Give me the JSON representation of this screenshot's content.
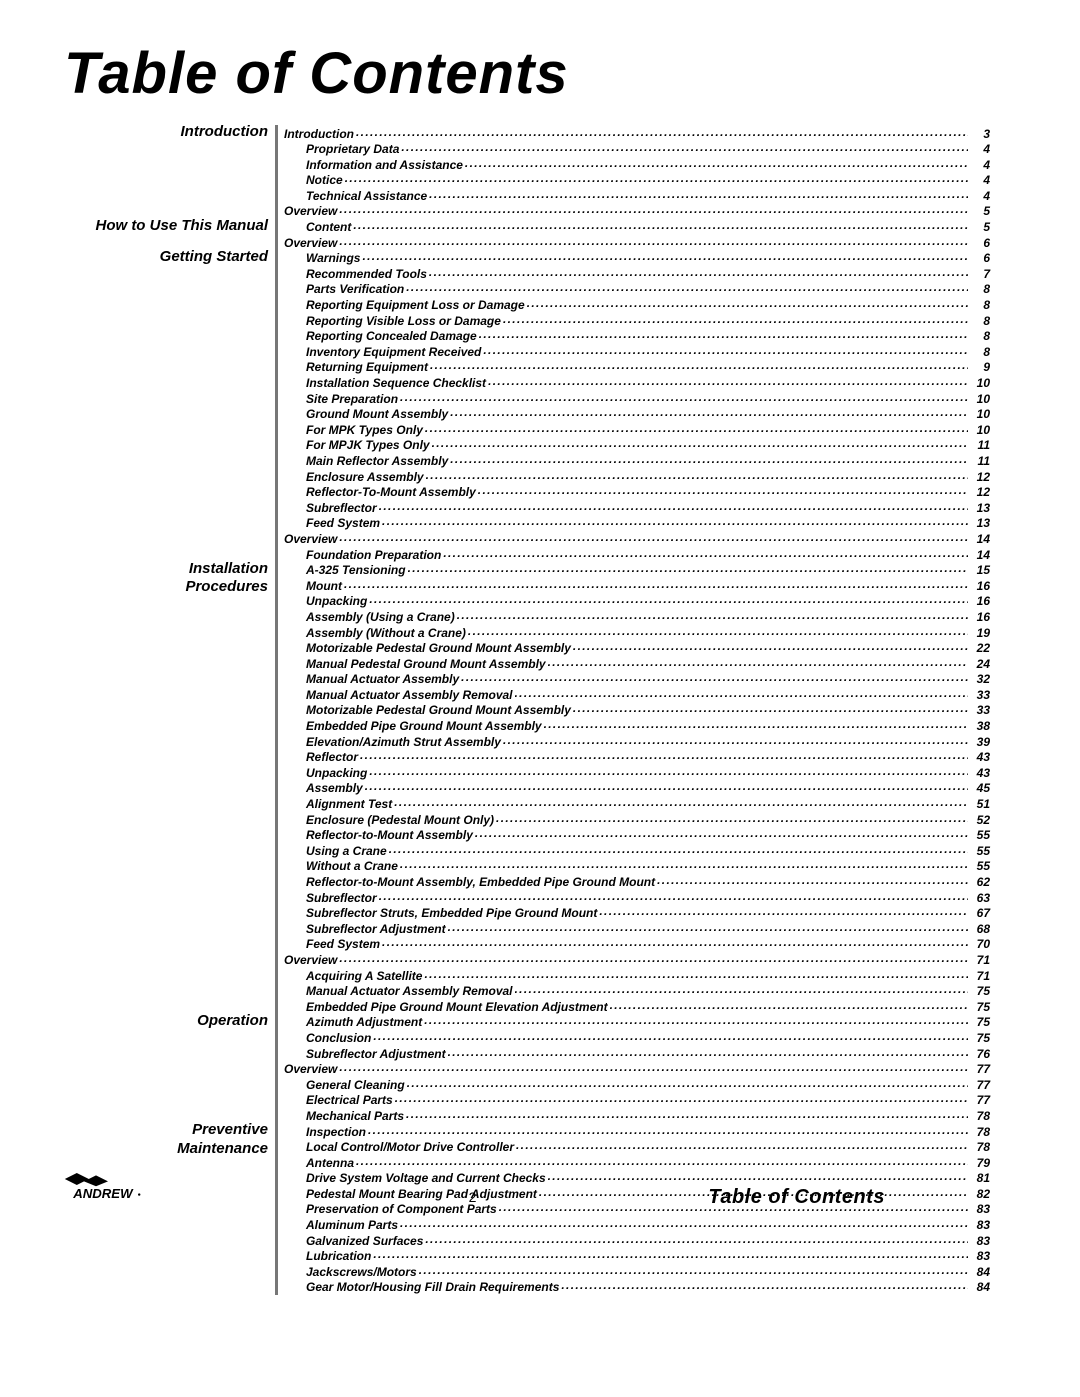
{
  "title": "Table of Contents",
  "page_number": "2",
  "footer_label": "Table of Contents",
  "logo_text": "ANDREW",
  "colors": {
    "text": "#000000",
    "rule": "#777777",
    "bg": "#ffffff"
  },
  "sections": [
    {
      "label": "Introduction",
      "start_index": 0
    },
    {
      "label": "How to Use This Manual",
      "start_index": 6
    },
    {
      "label": "Getting Started",
      "start_index": 8
    },
    {
      "label": "Installation Procedures",
      "start_index": 28
    },
    {
      "label": "Operation",
      "start_index": 57
    },
    {
      "label": "Preventive Maintenance",
      "start_index": 64
    }
  ],
  "entries": [
    {
      "level": 0,
      "label": "Introduction",
      "page": "3"
    },
    {
      "level": 1,
      "label": "Proprietary Data",
      "page": "4"
    },
    {
      "level": 1,
      "label": "Information and Assistance",
      "page": "4"
    },
    {
      "level": 1,
      "label": "Notice",
      "page": "4"
    },
    {
      "level": 1,
      "label": "Technical Assistance",
      "page": "4"
    },
    {
      "level": 0,
      "label": "Overview",
      "page": "5"
    },
    {
      "level": 1,
      "label": "Content",
      "page": "5"
    },
    {
      "level": 0,
      "label": "Overview",
      "page": "6"
    },
    {
      "level": 1,
      "label": "Warnings",
      "page": "6"
    },
    {
      "level": 1,
      "label": "Recommended Tools",
      "page": "7"
    },
    {
      "level": 1,
      "label": "Parts Verification",
      "page": "8"
    },
    {
      "level": 1,
      "label": "Reporting Equipment Loss or Damage",
      "page": "8"
    },
    {
      "level": 1,
      "label": "Reporting Visible Loss or Damage",
      "page": "8"
    },
    {
      "level": 1,
      "label": "Reporting Concealed Damage",
      "page": "8"
    },
    {
      "level": 1,
      "label": "Inventory Equipment Received",
      "page": "8"
    },
    {
      "level": 1,
      "label": "Returning Equipment",
      "page": "9"
    },
    {
      "level": 1,
      "label": "Installation Sequence Checklist",
      "page": "10"
    },
    {
      "level": 1,
      "label": "Site Preparation",
      "page": "10"
    },
    {
      "level": 1,
      "label": "Ground Mount Assembly",
      "page": "10"
    },
    {
      "level": 1,
      "label": "For MPK Types Only",
      "page": "10"
    },
    {
      "level": 1,
      "label": "For MPJK Types Only",
      "page": "11"
    },
    {
      "level": 1,
      "label": "Main Reflector Assembly",
      "page": "11"
    },
    {
      "level": 1,
      "label": "Enclosure Assembly",
      "page": "12"
    },
    {
      "level": 1,
      "label": "Reflector-To-Mount Assembly",
      "page": "12"
    },
    {
      "level": 1,
      "label": "Subreflector",
      "page": "13"
    },
    {
      "level": 1,
      "label": "Feed System",
      "page": "13"
    },
    {
      "level": 0,
      "label": "Overview",
      "page": "14"
    },
    {
      "level": 1,
      "label": "Foundation Preparation",
      "page": "14"
    },
    {
      "level": 1,
      "label": "A-325 Tensioning",
      "page": "15"
    },
    {
      "level": 1,
      "label": "Mount",
      "page": "16"
    },
    {
      "level": 1,
      "label": "Unpacking",
      "page": "16"
    },
    {
      "level": 1,
      "label": "Assembly (Using a Crane)",
      "page": "16"
    },
    {
      "level": 1,
      "label": "Assembly (Without a Crane)",
      "page": "19"
    },
    {
      "level": 1,
      "label": "Motorizable Pedestal Ground Mount Assembly",
      "page": "22"
    },
    {
      "level": 1,
      "label": "Manual Pedestal Ground Mount Assembly",
      "page": "24"
    },
    {
      "level": 1,
      "label": "Manual Actuator Assembly",
      "page": "32"
    },
    {
      "level": 1,
      "label": "Manual Actuator Assembly Removal",
      "page": "33"
    },
    {
      "level": 1,
      "label": "Motorizable Pedestal Ground Mount Assembly",
      "page": "33"
    },
    {
      "level": 1,
      "label": "Embedded Pipe Ground Mount Assembly",
      "page": "38"
    },
    {
      "level": 1,
      "label": "Elevation/Azimuth Strut Assembly",
      "page": "39"
    },
    {
      "level": 1,
      "label": "Reflector",
      "page": "43"
    },
    {
      "level": 1,
      "label": "Unpacking",
      "page": "43"
    },
    {
      "level": 1,
      "label": "Assembly",
      "page": "45"
    },
    {
      "level": 1,
      "label": "Alignment Test",
      "page": "51"
    },
    {
      "level": 1,
      "label": "Enclosure (Pedestal Mount Only)",
      "page": "52"
    },
    {
      "level": 1,
      "label": "Reflector-to-Mount Assembly",
      "page": "55"
    },
    {
      "level": 1,
      "label": "Using a Crane",
      "page": "55"
    },
    {
      "level": 1,
      "label": "Without a Crane",
      "page": "55"
    },
    {
      "level": 1,
      "label": "Reflector-to-Mount Assembly, Embedded Pipe Ground Mount",
      "page": "62"
    },
    {
      "level": 1,
      "label": "Subreflector",
      "page": "63"
    },
    {
      "level": 1,
      "label": "Subreflector Struts, Embedded Pipe Ground Mount",
      "page": "67"
    },
    {
      "level": 1,
      "label": "Subreflector Adjustment",
      "page": "68"
    },
    {
      "level": 1,
      "label": "Feed System",
      "page": "70"
    },
    {
      "level": 0,
      "label": "Overview",
      "page": "71"
    },
    {
      "level": 1,
      "label": "Acquiring A Satellite",
      "page": "71"
    },
    {
      "level": 1,
      "label": "Manual Actuator Assembly Removal",
      "page": "75"
    },
    {
      "level": 1,
      "label": "Embedded Pipe Ground Mount Elevation Adjustment",
      "page": "75"
    },
    {
      "level": 1,
      "label": "Azimuth Adjustment",
      "page": "75"
    },
    {
      "level": 1,
      "label": "Conclusion",
      "page": "75"
    },
    {
      "level": 1,
      "label": "Subreflector Adjustment",
      "page": "76"
    },
    {
      "level": 0,
      "label": "Overview",
      "page": "77"
    },
    {
      "level": 1,
      "label": "General Cleaning",
      "page": "77"
    },
    {
      "level": 1,
      "label": "Electrical Parts",
      "page": "77"
    },
    {
      "level": 1,
      "label": "Mechanical Parts",
      "page": "78"
    },
    {
      "level": 1,
      "label": "Inspection",
      "page": "78"
    },
    {
      "level": 1,
      "label": "Local Control/Motor Drive Controller",
      "page": "78"
    },
    {
      "level": 1,
      "label": "Antenna",
      "page": "79"
    },
    {
      "level": 1,
      "label": "Drive System Voltage and Current Checks",
      "page": "81"
    },
    {
      "level": 1,
      "label": "Pedestal Mount Bearing Pad Adjustment",
      "page": "82"
    },
    {
      "level": 1,
      "label": "Preservation of Component Parts",
      "page": "83"
    },
    {
      "level": 1,
      "label": "Aluminum Parts",
      "page": "83"
    },
    {
      "level": 1,
      "label": "Galvanized Surfaces",
      "page": "83"
    },
    {
      "level": 1,
      "label": "Lubrication",
      "page": "83"
    },
    {
      "level": 1,
      "label": "Jackscrews/Motors",
      "page": "84"
    },
    {
      "level": 1,
      "label": "Gear Motor/Housing Fill Drain Requirements",
      "page": "84"
    }
  ]
}
